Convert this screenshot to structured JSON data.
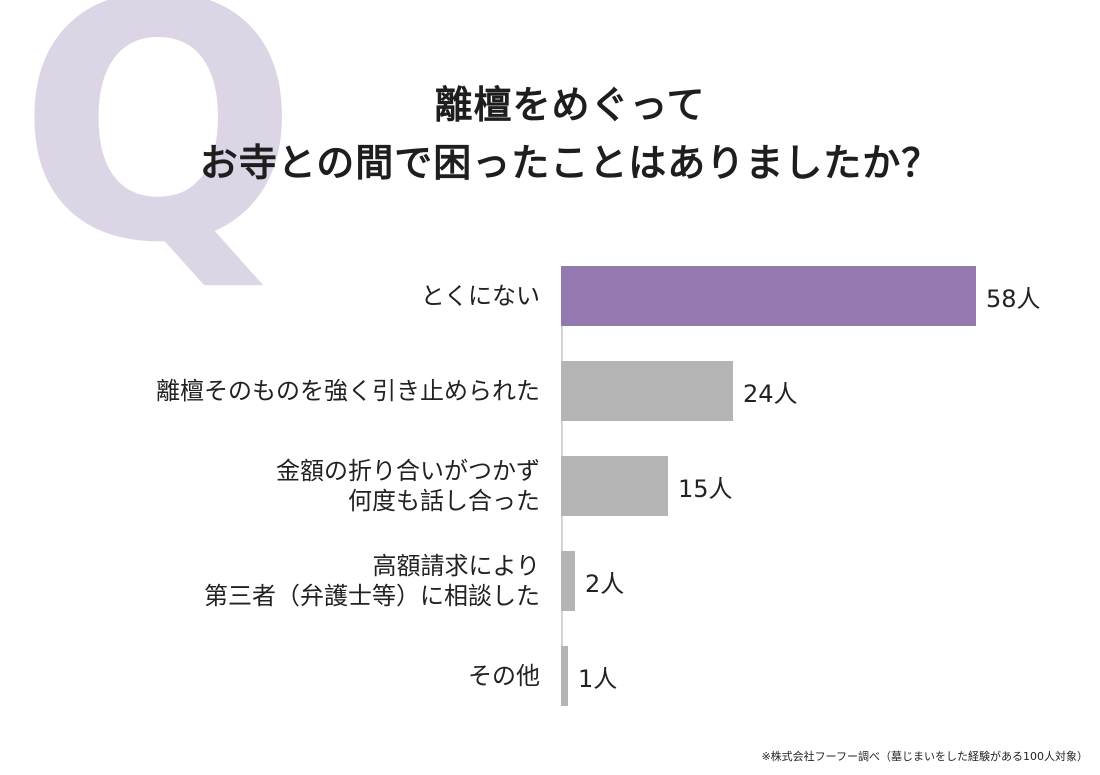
{
  "decor": {
    "q_letter": "Q"
  },
  "title": {
    "line1": "離檀をめぐって",
    "line2": "お寺との間で困ったことはありましたか？"
  },
  "chart_data": {
    "type": "bar",
    "orientation": "horizontal",
    "title": "離檀をめぐって お寺との間で困ったことはありましたか？",
    "xlabel": "",
    "ylabel": "",
    "unit": "人",
    "categories": [
      "とくにない",
      "離檀そのものを強く引き止められた",
      "金額の折り合いがつかず\n何度も話し合った",
      "高額請求により\n第三者（弁護士等）に相談した",
      "その他"
    ],
    "values": [
      58,
      24,
      15,
      2,
      1
    ],
    "value_labels": [
      "58人",
      "24人",
      "15人",
      "2人",
      "1人"
    ],
    "colors": [
      "#9479b0",
      "#b4b4b4",
      "#b4b4b4",
      "#b4b4b4",
      "#b4b4b4"
    ],
    "grid": false,
    "legend": null,
    "xlim": [
      0,
      58
    ]
  },
  "footnote": "※株式会社フーフー調べ（墓じまいをした経験がある100人対象）"
}
